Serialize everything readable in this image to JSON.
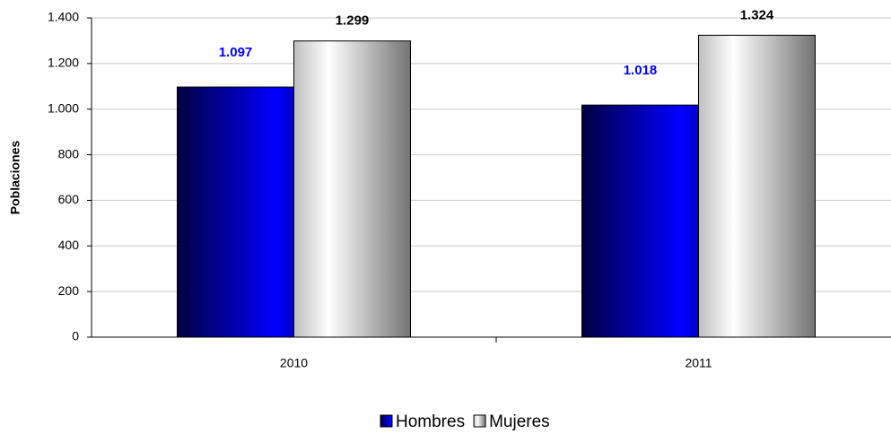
{
  "chart_data": {
    "type": "bar",
    "y_label": "Poblaciones",
    "categories": [
      "2010",
      "2011"
    ],
    "series": [
      {
        "name": "Hombres",
        "color": "#0000ff",
        "values": [
          1097,
          1018
        ],
        "value_labels": [
          "1.097",
          "1.018"
        ]
      },
      {
        "name": "Mujeres",
        "color": "#ffffff",
        "values": [
          1299,
          1324
        ],
        "value_labels": [
          "1.299",
          "1.324"
        ]
      }
    ],
    "ylim": [
      0,
      1400
    ],
    "yticks": [
      0,
      200,
      400,
      600,
      800,
      {
        "value": 1000,
        "label": "1.000"
      },
      {
        "value": 1200,
        "label": "1.200"
      },
      {
        "value": 1400,
        "label": "1.400"
      }
    ],
    "grid": true,
    "legend": "bottom"
  }
}
